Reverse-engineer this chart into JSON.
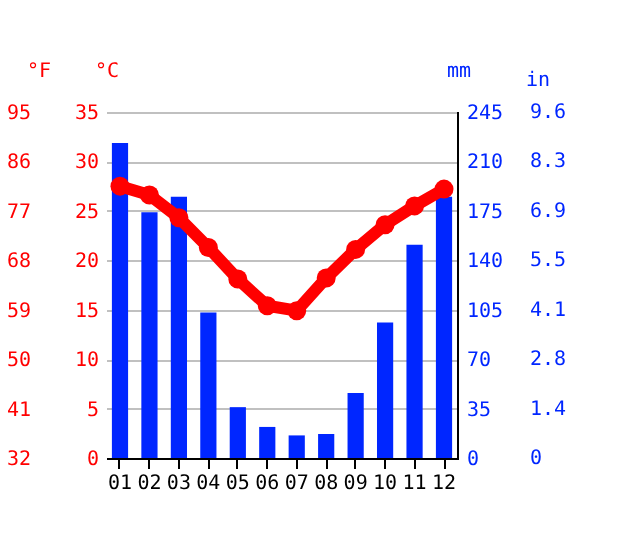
{
  "chart_data": {
    "type": "bar",
    "categories": [
      "01",
      "02",
      "03",
      "04",
      "05",
      "06",
      "07",
      "08",
      "09",
      "10",
      "11",
      "12"
    ],
    "series": [
      {
        "axis": "y2",
        "color": "#0026ff",
        "values": [
          223,
          174,
          185,
          103,
          36,
          22,
          16,
          17,
          46,
          96,
          151,
          185
        ]
      },
      {
        "type": "line",
        "axis": "y",
        "color": "#ff0000",
        "marker": "circle",
        "line_style": "solid",
        "values": [
          27.5,
          26.6,
          24.3,
          21.3,
          18.1,
          15.4,
          14.9,
          18.2,
          21.1,
          23.6,
          25.5,
          27.2
        ]
      }
    ],
    "ylabel": "°C",
    "ylim": [
      0,
      35
    ],
    "yticks": [
      0,
      5,
      10,
      15,
      20,
      25,
      30,
      35
    ],
    "y2label": "mm",
    "y2lim": [
      0,
      245
    ],
    "y2ticks": [
      0,
      35,
      70,
      105,
      140,
      175,
      210,
      245
    ],
    "y3label": "°F",
    "y3lim": [
      32,
      95
    ],
    "y3ticks": [
      32,
      41,
      50,
      59,
      68,
      77,
      86,
      95
    ],
    "annotations": [
      "in",
      "0",
      "1.4",
      "2.8",
      "4.1",
      "5.5",
      "6.9",
      "8.3",
      "9.6"
    ],
    "grid": "y"
  }
}
